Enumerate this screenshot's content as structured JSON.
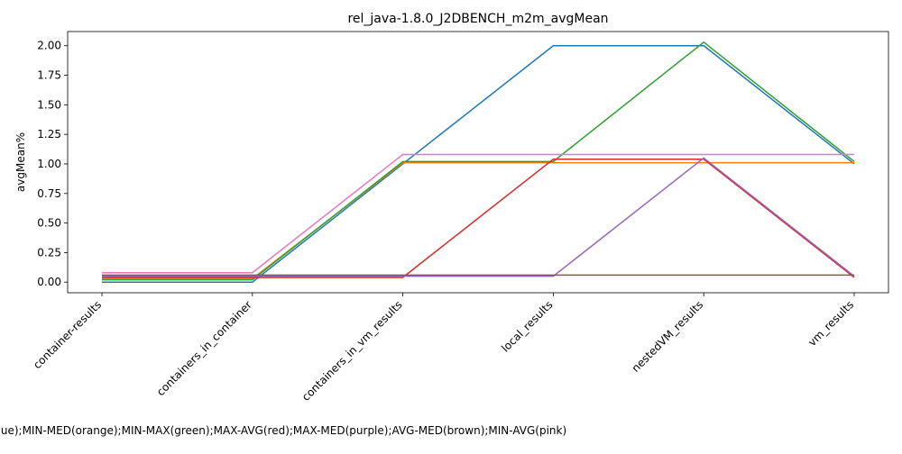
{
  "chart_data": {
    "type": "line",
    "title": "rel_java-1.8.0_J2DBENCH_m2m_avgMean",
    "xlabel": "MAX-MIN(blue);MIN-MED(orange);MIN-MAX(green);MAX-AVG(red);MAX-MED(purple);AVG-MED(brown);MIN-AVG(pink)",
    "ylabel": "avgMean%",
    "categories": [
      "container-results",
      "containers_in_container",
      "containers_in_vm_results",
      "local_results",
      "nestedVM_results",
      "vm_results"
    ],
    "ylim": [
      -0.09,
      2.12
    ],
    "yticks": [
      0.0,
      0.25,
      0.5,
      0.75,
      1.0,
      1.25,
      1.5,
      1.75,
      2.0
    ],
    "ytick_labels": [
      "0.00",
      "0.25",
      "0.50",
      "0.75",
      "1.00",
      "1.25",
      "1.50",
      "1.75",
      "2.00"
    ],
    "grid": false,
    "series": [
      {
        "color": "#1f77b4",
        "values": [
          0.0,
          0.0,
          1.0,
          2.0,
          2.0,
          1.0
        ]
      },
      {
        "color": "#ff7f0e",
        "values": [
          0.03,
          0.03,
          1.01,
          1.01,
          1.01,
          1.01
        ]
      },
      {
        "color": "#2ca02c",
        "values": [
          0.02,
          0.02,
          1.02,
          1.02,
          2.03,
          1.02
        ]
      },
      {
        "color": "#d62728",
        "values": [
          0.04,
          0.04,
          0.04,
          1.04,
          1.04,
          0.04
        ]
      },
      {
        "color": "#9467bd",
        "values": [
          0.05,
          0.05,
          0.05,
          0.05,
          1.05,
          0.05
        ]
      },
      {
        "color": "#8c564b",
        "values": [
          0.06,
          0.06,
          0.06,
          0.06,
          0.06,
          0.06
        ]
      },
      {
        "color": "#e377c2",
        "values": [
          0.08,
          0.08,
          1.08,
          1.08,
          1.08,
          1.08
        ]
      }
    ]
  }
}
